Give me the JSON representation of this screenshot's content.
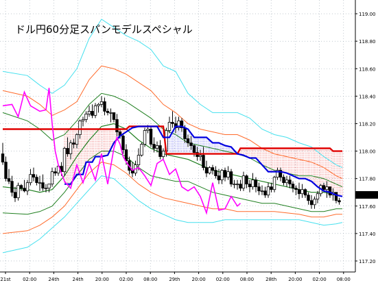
{
  "chart_data": {
    "type": "line",
    "title": "ドル円60分足スパンモデルスペシャル",
    "y_ticks": [
      "119.00",
      "118.80",
      "118.60",
      "118.40",
      "118.20",
      "118.00",
      "117.80",
      "117.60",
      "117.40",
      "117.20"
    ],
    "ylim": [
      117.12,
      119.1
    ],
    "current_price_label": "117.63",
    "x_ticks": [
      "21st",
      "02:00",
      "24th",
      "24th",
      "20:00",
      "02:00",
      "08:00",
      "29th",
      "20:00",
      "02:00",
      "08:00",
      "28th",
      "20:00",
      "02:00",
      "08:00"
    ],
    "grid": true,
    "colors": {
      "background": "#ffffff",
      "grid": "#9aa6b0",
      "candle": "#000000",
      "span_red": "#e00000",
      "span_blue": "#0000e0",
      "chikou": "#ff00ff",
      "bb_outer": "#44e0ee",
      "bb_mid": "#ff6a2a",
      "bb_inner": "#1f7f1f",
      "sma": "#1f7f1f",
      "price_box": "#000000"
    },
    "series": [
      {
        "color": "#e00000",
        "role": "span-red",
        "x": [
          0,
          19,
          20,
          40,
          41,
          52,
          53,
          70,
          71,
          76,
          77,
          80,
          81,
          99,
          100,
          106,
          107,
          110
        ],
        "y": [
          118.16,
          118.16,
          118.16,
          118.16,
          118.18,
          118.18,
          117.98,
          117.98,
          117.98,
          117.98,
          118.02,
          118.02,
          118.02,
          118.02,
          118.02,
          118.02,
          118.0,
          118.0
        ]
      },
      {
        "color": "#0000e0",
        "role": "span-blue",
        "x": [
          20,
          22,
          24,
          26,
          27,
          29,
          30,
          32,
          34,
          36,
          38,
          40,
          42,
          44,
          46,
          48,
          50,
          52,
          54,
          56,
          58,
          60,
          62,
          64,
          66,
          68,
          70,
          72,
          74,
          76,
          78,
          80,
          82,
          84,
          86,
          88,
          90,
          92,
          94,
          96,
          98,
          100,
          102,
          104,
          106,
          108,
          110
        ],
        "y": [
          117.76,
          117.76,
          117.83,
          117.83,
          117.92,
          117.92,
          117.96,
          117.96,
          117.97,
          118.06,
          118.11,
          118.14,
          118.17,
          118.18,
          118.18,
          118.18,
          118.18,
          118.1,
          118.1,
          118.18,
          118.18,
          118.16,
          118.1,
          118.1,
          118.1,
          118.06,
          118.06,
          118.04,
          118.03,
          117.98,
          117.97,
          117.95,
          117.95,
          117.9,
          117.85,
          117.85,
          117.85,
          117.84,
          117.82,
          117.8,
          117.8,
          117.78,
          117.74,
          117.71,
          117.7,
          117.68,
          117.67
        ]
      },
      {
        "color": "#ff00ff",
        "role": "chikou",
        "x": [
          0,
          3,
          5,
          7,
          9,
          12,
          14,
          15,
          16,
          17,
          18,
          20,
          22,
          24,
          26,
          28,
          30,
          32,
          34,
          36,
          37,
          38,
          39,
          40,
          42,
          44,
          46,
          48,
          50,
          52,
          54,
          56,
          58,
          60,
          62,
          64,
          66,
          68,
          70,
          72,
          74,
          76,
          77
        ],
        "y": [
          118.33,
          118.34,
          118.25,
          118.43,
          118.33,
          118.29,
          118.3,
          118.46,
          118.2,
          118.0,
          117.9,
          117.78,
          117.73,
          117.9,
          117.77,
          117.91,
          117.79,
          117.98,
          117.76,
          118.02,
          118.1,
          118.05,
          117.96,
          117.92,
          117.86,
          117.88,
          117.82,
          117.75,
          117.91,
          117.94,
          117.83,
          117.87,
          117.74,
          117.71,
          117.74,
          117.67,
          117.55,
          117.77,
          117.57,
          117.58,
          117.67,
          117.6,
          117.62
        ]
      },
      {
        "color": "#44e0ee",
        "role": "bb-upper-outer",
        "x": [
          0,
          8,
          12,
          16,
          20,
          24,
          28,
          32,
          36,
          40,
          44,
          48,
          52,
          56,
          60,
          64,
          68,
          72,
          76,
          80,
          84,
          88,
          92,
          96,
          100,
          104,
          108,
          110
        ],
        "y": [
          118.58,
          118.55,
          118.48,
          118.42,
          118.48,
          118.6,
          118.82,
          118.96,
          118.9,
          118.84,
          118.8,
          118.74,
          118.62,
          118.58,
          118.42,
          118.34,
          118.28,
          118.28,
          118.28,
          118.24,
          118.16,
          118.12,
          118.1,
          118.06,
          118.03,
          117.96,
          117.9,
          117.88
        ]
      },
      {
        "color": "#ff6a2a",
        "role": "bb-upper-mid",
        "x": [
          0,
          8,
          12,
          16,
          20,
          24,
          28,
          32,
          36,
          40,
          44,
          48,
          52,
          56,
          60,
          64,
          68,
          72,
          76,
          80,
          84,
          88,
          92,
          96,
          100,
          104,
          108,
          110
        ],
        "y": [
          118.44,
          118.4,
          118.34,
          118.26,
          118.3,
          118.36,
          118.52,
          118.62,
          118.6,
          118.56,
          118.5,
          118.44,
          118.34,
          118.28,
          118.2,
          118.16,
          118.14,
          118.12,
          118.12,
          118.08,
          118.02,
          117.98,
          117.96,
          117.94,
          117.92,
          117.88,
          117.82,
          117.8
        ]
      },
      {
        "color": "#1f7f1f",
        "role": "bb-upper-inner",
        "x": [
          0,
          8,
          12,
          16,
          20,
          24,
          28,
          32,
          36,
          40,
          44,
          48,
          52,
          56,
          60,
          64,
          68,
          72,
          76,
          80,
          84,
          88,
          92,
          96,
          100,
          104,
          108,
          110
        ],
        "y": [
          118.28,
          118.22,
          118.16,
          118.08,
          118.12,
          118.22,
          118.34,
          118.42,
          118.4,
          118.36,
          118.3,
          118.24,
          118.16,
          118.12,
          118.06,
          118.04,
          118.02,
          118.0,
          117.98,
          117.95,
          117.9,
          117.86,
          117.84,
          117.82,
          117.82,
          117.8,
          117.76,
          117.74
        ]
      },
      {
        "color": "#1f7f1f",
        "role": "sma",
        "x": [
          0,
          8,
          12,
          16,
          20,
          24,
          28,
          32,
          36,
          40,
          44,
          48,
          52,
          56,
          60,
          64,
          68,
          72,
          76,
          80,
          84,
          88,
          92,
          96,
          100,
          104,
          108,
          110
        ],
        "y": [
          117.74,
          117.72,
          117.7,
          117.72,
          117.82,
          117.96,
          118.08,
          118.18,
          118.2,
          118.16,
          118.08,
          118.02,
          117.98,
          117.96,
          117.94,
          117.9,
          117.86,
          117.84,
          117.82,
          117.8,
          117.78,
          117.76,
          117.74,
          117.72,
          117.7,
          117.7,
          117.68,
          117.67
        ]
      },
      {
        "color": "#1f7f1f",
        "role": "bb-lower-inner",
        "x": [
          0,
          8,
          12,
          16,
          20,
          24,
          28,
          32,
          36,
          40,
          44,
          48,
          52,
          56,
          60,
          64,
          68,
          72,
          76,
          80,
          84,
          88,
          92,
          96,
          100,
          104,
          108,
          110
        ],
        "y": [
          117.55,
          117.54,
          117.56,
          117.6,
          117.7,
          117.82,
          117.94,
          118.0,
          118.0,
          117.96,
          117.88,
          117.82,
          117.8,
          117.78,
          117.78,
          117.74,
          117.7,
          117.68,
          117.66,
          117.64,
          117.62,
          117.62,
          117.6,
          117.58,
          117.56,
          117.56,
          117.58,
          117.58
        ]
      },
      {
        "color": "#ff6a2a",
        "role": "bb-lower-mid",
        "x": [
          0,
          8,
          12,
          16,
          20,
          24,
          28,
          32,
          36,
          40,
          44,
          48,
          52,
          56,
          60,
          64,
          68,
          72,
          76,
          80,
          84,
          88,
          92,
          96,
          100,
          104,
          108,
          110
        ],
        "y": [
          117.4,
          117.42,
          117.46,
          117.52,
          117.6,
          117.72,
          117.84,
          117.92,
          117.9,
          117.84,
          117.76,
          117.7,
          117.66,
          117.64,
          117.62,
          117.6,
          117.58,
          117.58,
          117.56,
          117.56,
          117.56,
          117.56,
          117.55,
          117.54,
          117.52,
          117.52,
          117.54,
          117.54
        ]
      },
      {
        "color": "#44e0ee",
        "role": "bb-lower-outer",
        "x": [
          0,
          8,
          12,
          16,
          20,
          24,
          28,
          32,
          36,
          40,
          44,
          48,
          52,
          56,
          60,
          64,
          68,
          72,
          76,
          80,
          84,
          88,
          92,
          96,
          100,
          104,
          108,
          110
        ],
        "y": [
          117.26,
          117.3,
          117.36,
          117.44,
          117.52,
          117.62,
          117.72,
          117.82,
          117.8,
          117.72,
          117.64,
          117.58,
          117.54,
          117.5,
          117.48,
          117.48,
          117.48,
          117.5,
          117.5,
          117.5,
          117.5,
          117.5,
          117.5,
          117.5,
          117.48,
          117.46,
          117.47,
          117.48
        ]
      }
    ],
    "candles": {
      "o": [
        117.98,
        117.92,
        117.8,
        117.78,
        117.7,
        117.66,
        117.75,
        117.73,
        117.71,
        117.77,
        117.83,
        117.81,
        117.77,
        117.77,
        117.73,
        117.73,
        117.76,
        117.85,
        117.84,
        117.89,
        117.85,
        118.02,
        117.98,
        118.06,
        118.05,
        118.12,
        118.22,
        118.23,
        118.27,
        118.29,
        118.26,
        118.33,
        118.34,
        118.36,
        118.29,
        118.28,
        118.28,
        118.23,
        118.14,
        118.11,
        118.01,
        117.93,
        117.86,
        117.84,
        117.9,
        117.97,
        118.05,
        118.15,
        118.16,
        118.05,
        118.02,
        118.04,
        117.96,
        118.0,
        118.15,
        118.21,
        118.2,
        118.17,
        118.22,
        118.17,
        118.09,
        118.06,
        118.04,
        117.99,
        117.96,
        117.97,
        117.88,
        117.84,
        117.88,
        117.86,
        117.82,
        117.79,
        117.86,
        117.81,
        117.85,
        117.76,
        117.76,
        117.76,
        117.73,
        117.82,
        117.76,
        117.74,
        117.79,
        117.74,
        117.71,
        117.71,
        117.68,
        117.74,
        117.72,
        117.81,
        117.86,
        117.81,
        117.77,
        117.79,
        117.76,
        117.73,
        117.72,
        117.69,
        117.72,
        117.68,
        117.64,
        117.61,
        117.65,
        117.69,
        117.75,
        117.72,
        117.74,
        117.68,
        117.7,
        117.64
      ],
      "h": [
        118.06,
        117.96,
        117.87,
        117.82,
        117.74,
        117.77,
        117.76,
        117.79,
        117.79,
        117.87,
        117.88,
        117.83,
        117.82,
        117.83,
        117.76,
        117.76,
        117.88,
        117.88,
        117.9,
        117.92,
        118.03,
        118.1,
        118.08,
        118.09,
        118.13,
        118.23,
        118.25,
        118.29,
        118.33,
        118.34,
        118.35,
        118.35,
        118.4,
        118.39,
        118.31,
        118.31,
        118.28,
        118.27,
        118.16,
        118.13,
        118.05,
        117.96,
        117.92,
        117.93,
        118.02,
        118.06,
        118.17,
        118.19,
        118.18,
        118.1,
        118.07,
        118.08,
        118.02,
        118.17,
        118.25,
        118.29,
        118.25,
        118.25,
        118.24,
        118.19,
        118.12,
        118.11,
        118.05,
        118.03,
        118.01,
        118.03,
        117.93,
        117.89,
        117.9,
        117.89,
        117.87,
        117.87,
        117.88,
        117.89,
        117.87,
        117.79,
        117.79,
        117.79,
        117.85,
        117.83,
        117.79,
        117.84,
        117.81,
        117.77,
        117.75,
        117.74,
        117.77,
        117.77,
        117.82,
        117.88,
        117.88,
        117.83,
        117.82,
        117.82,
        117.78,
        117.75,
        117.77,
        117.76,
        117.73,
        117.7,
        117.68,
        117.67,
        117.71,
        117.76,
        117.77,
        117.78,
        117.74,
        117.73,
        117.7,
        117.66
      ],
      "l": [
        117.9,
        117.78,
        117.76,
        117.67,
        117.63,
        117.64,
        117.71,
        117.7,
        117.68,
        117.75,
        117.78,
        117.75,
        117.71,
        117.71,
        117.7,
        117.7,
        117.74,
        117.82,
        117.82,
        117.82,
        117.82,
        117.96,
        117.94,
        118.02,
        118.02,
        118.09,
        118.18,
        118.21,
        118.25,
        118.24,
        118.24,
        118.28,
        118.32,
        118.26,
        118.26,
        118.21,
        118.21,
        118.1,
        118.09,
        117.98,
        117.9,
        117.83,
        117.81,
        117.82,
        117.86,
        117.96,
        118.03,
        118.13,
        118.03,
        117.99,
        117.99,
        117.94,
        117.94,
        117.96,
        118.13,
        118.17,
        118.13,
        118.15,
        118.14,
        118.06,
        118.03,
        118.01,
        117.96,
        117.93,
        117.93,
        117.86,
        117.81,
        117.83,
        117.83,
        117.8,
        117.76,
        117.76,
        117.78,
        117.79,
        117.74,
        117.73,
        117.72,
        117.71,
        117.71,
        117.73,
        117.7,
        117.72,
        117.7,
        117.68,
        117.68,
        117.66,
        117.66,
        117.7,
        117.7,
        117.79,
        117.78,
        117.75,
        117.74,
        117.73,
        117.7,
        117.68,
        117.65,
        117.66,
        117.66,
        117.61,
        117.58,
        117.58,
        117.62,
        117.67,
        117.7,
        117.66,
        117.66,
        117.64,
        117.62,
        117.61
      ],
      "c": [
        117.92,
        117.8,
        117.78,
        117.7,
        117.66,
        117.75,
        117.73,
        117.71,
        117.77,
        117.83,
        117.81,
        117.77,
        117.77,
        117.73,
        117.73,
        117.76,
        117.85,
        117.84,
        117.89,
        117.85,
        118.02,
        117.98,
        118.06,
        118.05,
        118.12,
        118.22,
        118.23,
        118.27,
        118.29,
        118.26,
        118.33,
        118.34,
        118.36,
        118.29,
        118.28,
        118.28,
        118.23,
        118.14,
        118.11,
        118.01,
        117.93,
        117.86,
        117.84,
        117.9,
        117.97,
        118.05,
        118.15,
        118.16,
        118.05,
        118.02,
        118.04,
        117.96,
        118.0,
        118.15,
        118.21,
        118.2,
        118.17,
        118.22,
        118.17,
        118.09,
        118.06,
        118.04,
        117.99,
        117.96,
        117.97,
        117.88,
        117.84,
        117.88,
        117.86,
        117.82,
        117.79,
        117.86,
        117.81,
        117.85,
        117.76,
        117.76,
        117.76,
        117.73,
        117.82,
        117.76,
        117.74,
        117.79,
        117.74,
        117.71,
        117.71,
        117.68,
        117.74,
        117.72,
        117.81,
        117.86,
        117.81,
        117.77,
        117.79,
        117.76,
        117.73,
        117.72,
        117.69,
        117.72,
        117.68,
        117.64,
        117.61,
        117.65,
        117.69,
        117.75,
        117.72,
        117.74,
        117.68,
        117.7,
        117.64,
        117.63
      ]
    }
  }
}
